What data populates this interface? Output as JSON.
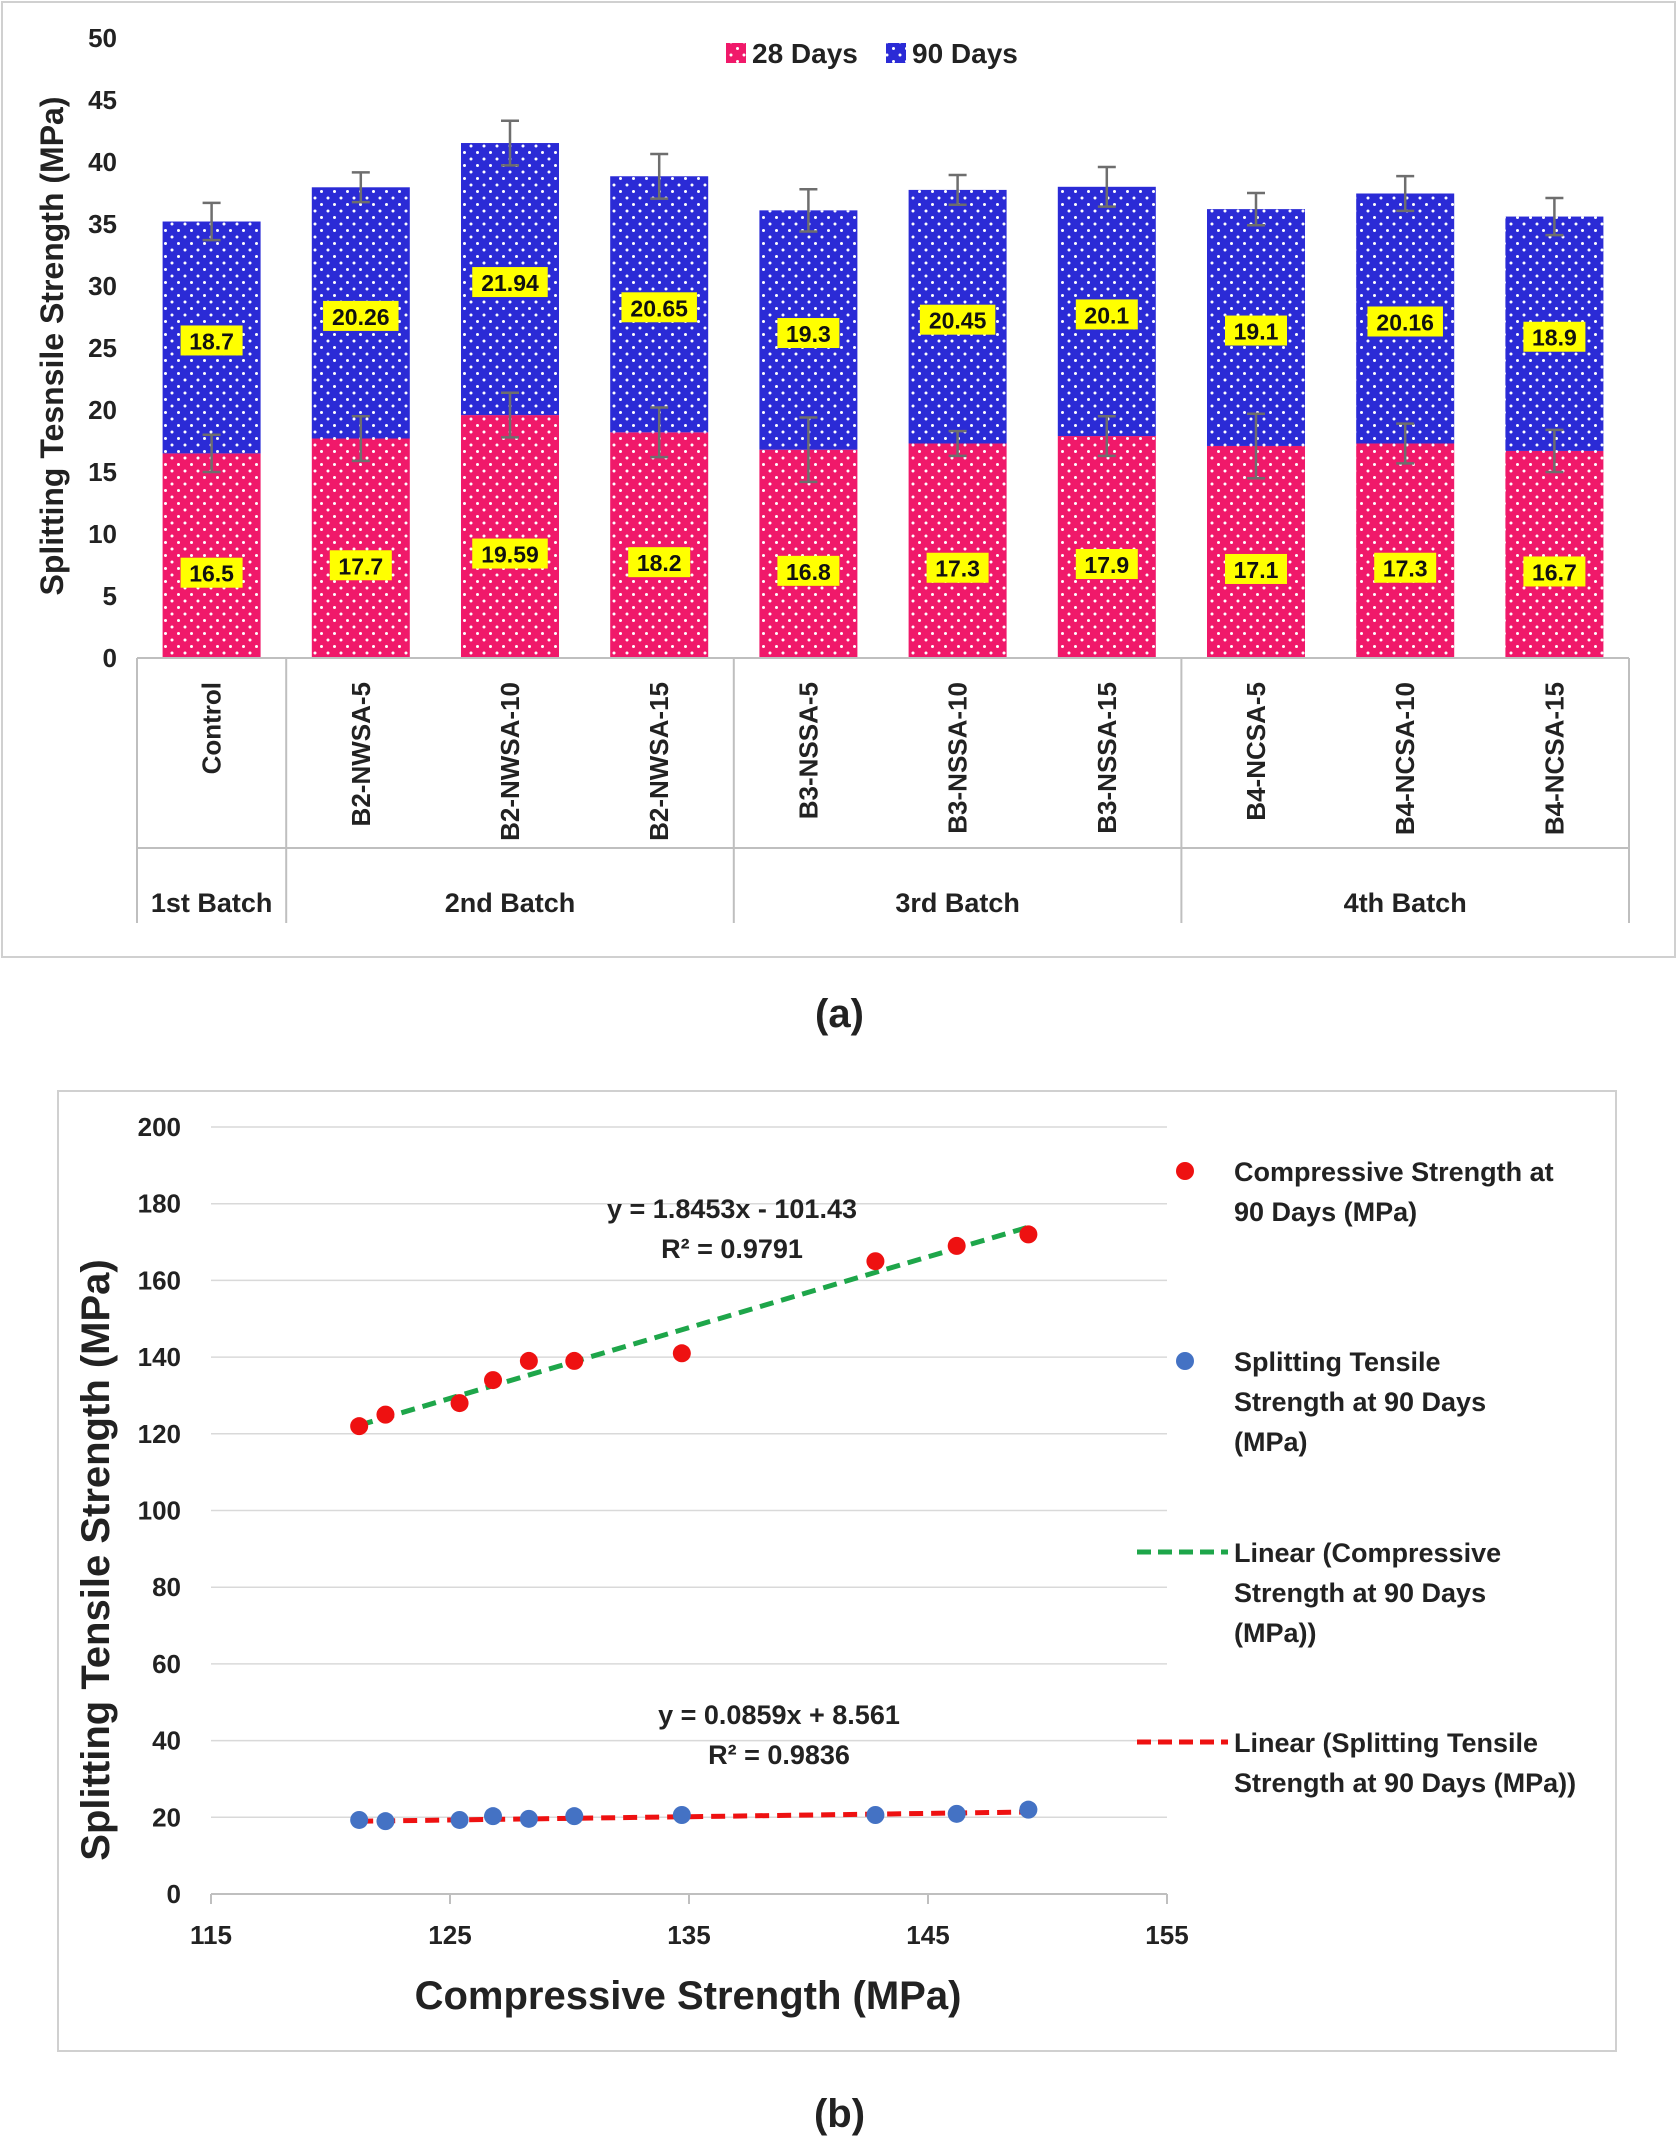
{
  "colors": {
    "series28": "#f0196a",
    "series90": "#2b2bd6",
    "label_bg": "#ffff00",
    "compressive_points": "#ee1111",
    "tensile_points": "#4472c4",
    "trend_compressive": "#1ea64a",
    "trend_tensile": "#ee1111",
    "grid": "#d9d9d9",
    "frame": "#d0d0d0"
  },
  "captions": {
    "a": "(a)",
    "b": "(b)"
  },
  "chart_data": [
    {
      "type": "bar",
      "stacked": true,
      "title": "",
      "ylabel": "Splitting Tesnsile Strength (MPa)",
      "xlabel": "",
      "ylim": [
        0,
        50
      ],
      "yticks": [
        0,
        5,
        10,
        15,
        20,
        25,
        30,
        35,
        40,
        45,
        50
      ],
      "legend_position": "top-center",
      "categories": [
        "Control",
        "B2-NWSA-5",
        "B2-NWSA-10",
        "B2-NWSA-15",
        "B3-NSSA-5",
        "B3-NSSA-10",
        "B3-NSSA-15",
        "B4-NCSA-5",
        "B4-NCSA-10",
        "B4-NCSA-15"
      ],
      "groups": [
        {
          "label": "1st Batch",
          "count": 1
        },
        {
          "label": "2nd Batch",
          "count": 3
        },
        {
          "label": "3rd Batch",
          "count": 3
        },
        {
          "label": "4th Batch",
          "count": 3
        }
      ],
      "series": [
        {
          "name": "28 Days",
          "values": [
            16.5,
            17.7,
            19.59,
            18.2,
            16.8,
            17.3,
            17.9,
            17.1,
            17.3,
            16.7
          ],
          "labels": [
            "16.5",
            "17.7",
            "19.59",
            "18.2",
            "16.8",
            "17.3",
            "17.9",
            "17.1",
            "17.3",
            "16.7"
          ],
          "error": [
            1.5,
            1.8,
            1.8,
            2.0,
            2.6,
            1.0,
            1.6,
            2.6,
            1.6,
            1.7
          ]
        },
        {
          "name": "90 Days",
          "values": [
            18.7,
            20.26,
            21.94,
            20.65,
            19.3,
            20.45,
            20.1,
            19.1,
            20.16,
            18.9
          ],
          "labels": [
            "18.7",
            "20.26",
            "21.94",
            "20.65",
            "19.3",
            "20.45",
            "20.1",
            "19.1",
            "20.16",
            "18.9"
          ],
          "error": [
            1.5,
            1.2,
            1.8,
            1.8,
            1.7,
            1.2,
            1.6,
            1.3,
            1.4,
            1.5
          ]
        }
      ]
    },
    {
      "type": "scatter",
      "title": "",
      "xlabel": "Compressive Strength (MPa)",
      "ylabel": "Splitting Tensile Strength (MPa)",
      "xlim": [
        115,
        155
      ],
      "ylim": [
        0,
        200
      ],
      "xticks": [
        115,
        125,
        135,
        145,
        155
      ],
      "yticks": [
        0,
        20,
        40,
        60,
        80,
        100,
        120,
        140,
        160,
        180,
        200
      ],
      "legend_position": "right",
      "x": [
        121.2,
        122.3,
        125.4,
        126.8,
        128.3,
        130.2,
        134.7,
        142.8,
        146.2,
        149.2
      ],
      "series": [
        {
          "name": "Compressive Strength at 90 Days (MPa)",
          "values": [
            122,
            125,
            128,
            134,
            139,
            139,
            141,
            165,
            169,
            172
          ]
        },
        {
          "name": "Splitting Tensile Strength at 90 Days (MPa)",
          "values": [
            19.3,
            19.0,
            19.3,
            20.3,
            19.6,
            20.3,
            20.6,
            20.6,
            20.9,
            22.0
          ]
        }
      ],
      "trendlines": [
        {
          "name": "Linear (Compressive Strength at 90 Days (MPa))",
          "slope": 1.8453,
          "intercept": -101.43,
          "equation": "y = 1.8453x - 101.43",
          "r2": "R² = 0.9791"
        },
        {
          "name": "Linear (Splitting Tensile Strength at 90 Days (MPa))",
          "slope": 0.0859,
          "intercept": 8.561,
          "equation": "y = 0.0859x + 8.561",
          "r2": "R² = 0.9836"
        }
      ]
    }
  ]
}
